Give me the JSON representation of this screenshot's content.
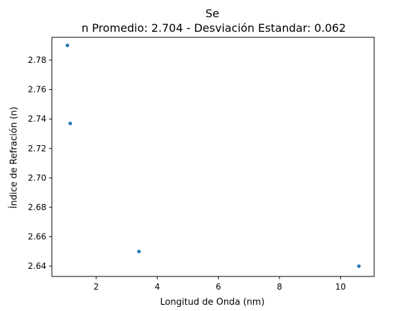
{
  "chart_data": {
    "type": "scatter",
    "title": "Se",
    "subtitle": "n Promedio: 2.704 - Desviación Estandar: 0.062",
    "xlabel": "Longitud de Onda (nm)",
    "ylabel": "Índice de Refración (n)",
    "xlim": [
      0.55,
      11.1
    ],
    "ylim": [
      2.633,
      2.7955
    ],
    "xticks": [
      2,
      4,
      6,
      8,
      10
    ],
    "yticks": [
      2.64,
      2.66,
      2.68,
      2.7,
      2.72,
      2.74,
      2.76,
      2.78
    ],
    "ytick_labels": [
      "2.64",
      "2.66",
      "2.68",
      "2.70",
      "2.72",
      "2.74",
      "2.76",
      "2.78"
    ],
    "grid": false,
    "point_color": "#1f77b4",
    "points": [
      {
        "x": 1.06,
        "y": 2.79
      },
      {
        "x": 1.15,
        "y": 2.737
      },
      {
        "x": 3.4,
        "y": 2.65
      },
      {
        "x": 10.6,
        "y": 2.64
      }
    ]
  }
}
